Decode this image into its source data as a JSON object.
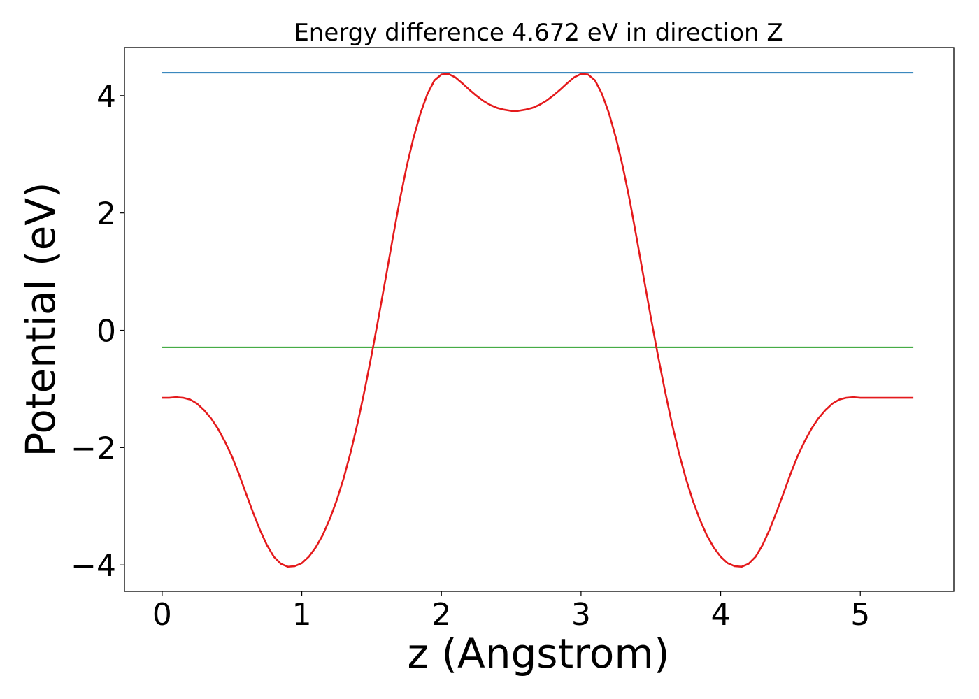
{
  "chart_data": {
    "type": "line",
    "title": "Energy difference 4.672 eV in direction Z",
    "xlabel": "z (Angstrom)",
    "ylabel": "Potential (eV)",
    "xlim": [
      -0.27,
      5.67
    ],
    "ylim": [
      -4.45,
      4.82
    ],
    "xticks": [
      0,
      1,
      2,
      3,
      4,
      5
    ],
    "xtick_labels": [
      "0",
      "1",
      "2",
      "3",
      "4",
      "5"
    ],
    "yticks": [
      -4,
      -2,
      0,
      2,
      4
    ],
    "ytick_labels": [
      "−4",
      "−2",
      "0",
      "2",
      "4"
    ],
    "grid": false,
    "series": [
      {
        "color": "#1f77b4",
        "style": "hline",
        "x": [
          0.0,
          5.38
        ],
        "y": [
          4.39,
          4.39
        ]
      },
      {
        "color": "#2ca02c",
        "style": "hline",
        "x": [
          0.0,
          5.38
        ],
        "y": [
          -0.29,
          -0.29
        ]
      },
      {
        "color": "#e41a1c",
        "style": "curve",
        "x": [
          0.0,
          0.05,
          0.1,
          0.15,
          0.2,
          0.25,
          0.3,
          0.35,
          0.4,
          0.45,
          0.5,
          0.55,
          0.6,
          0.65,
          0.7,
          0.75,
          0.8,
          0.85,
          0.9,
          0.95,
          1.0,
          1.05,
          1.1,
          1.15,
          1.2,
          1.25,
          1.3,
          1.35,
          1.4,
          1.45,
          1.5,
          1.55,
          1.6,
          1.65,
          1.7,
          1.75,
          1.8,
          1.85,
          1.9,
          1.95,
          2.0,
          2.05,
          2.1,
          2.15,
          2.2,
          2.25,
          2.3,
          2.35,
          2.4,
          2.45,
          2.5,
          2.55,
          2.6,
          2.65,
          2.7,
          2.75,
          2.8,
          2.85,
          2.9,
          2.95,
          3.0,
          3.05,
          3.1,
          3.15,
          3.2,
          3.25,
          3.3,
          3.35,
          3.4,
          3.45,
          3.5,
          3.55,
          3.6,
          3.65,
          3.7,
          3.75,
          3.8,
          3.85,
          3.9,
          3.95,
          4.0,
          4.05,
          4.1,
          4.15,
          4.2,
          4.25,
          4.3,
          4.35,
          4.4,
          4.45,
          4.5,
          4.55,
          4.6,
          4.65,
          4.7,
          4.75,
          4.8,
          4.85,
          4.9,
          4.95,
          5.0,
          5.05,
          5.1,
          5.15,
          5.2,
          5.25,
          5.3,
          5.35,
          5.38
        ],
        "y": [
          -1.15,
          -1.15,
          -1.14,
          -1.15,
          -1.18,
          -1.25,
          -1.36,
          -1.5,
          -1.68,
          -1.9,
          -2.15,
          -2.45,
          -2.78,
          -3.1,
          -3.4,
          -3.66,
          -3.86,
          -3.98,
          -4.03,
          -4.02,
          -3.97,
          -3.86,
          -3.7,
          -3.49,
          -3.22,
          -2.9,
          -2.52,
          -2.08,
          -1.58,
          -1.02,
          -0.42,
          0.22,
          0.88,
          1.55,
          2.2,
          2.78,
          3.28,
          3.7,
          4.03,
          4.26,
          4.36,
          4.37,
          4.31,
          4.21,
          4.1,
          4.0,
          3.91,
          3.84,
          3.79,
          3.76,
          3.74,
          3.74,
          3.76,
          3.79,
          3.84,
          3.91,
          4.0,
          4.1,
          4.21,
          4.31,
          4.37,
          4.36,
          4.26,
          4.03,
          3.7,
          3.28,
          2.78,
          2.2,
          1.55,
          0.88,
          0.22,
          -0.42,
          -1.02,
          -1.58,
          -2.08,
          -2.52,
          -2.9,
          -3.22,
          -3.49,
          -3.7,
          -3.86,
          -3.97,
          -4.02,
          -4.03,
          -3.98,
          -3.86,
          -3.66,
          -3.4,
          -3.1,
          -2.78,
          -2.45,
          -2.15,
          -1.9,
          -1.68,
          -1.5,
          -1.36,
          -1.25,
          -1.18,
          -1.15,
          -1.14,
          -1.15,
          -1.15,
          -1.15,
          -1.15,
          -1.15,
          -1.15,
          -1.15,
          -1.15,
          -1.15
        ]
      }
    ]
  }
}
